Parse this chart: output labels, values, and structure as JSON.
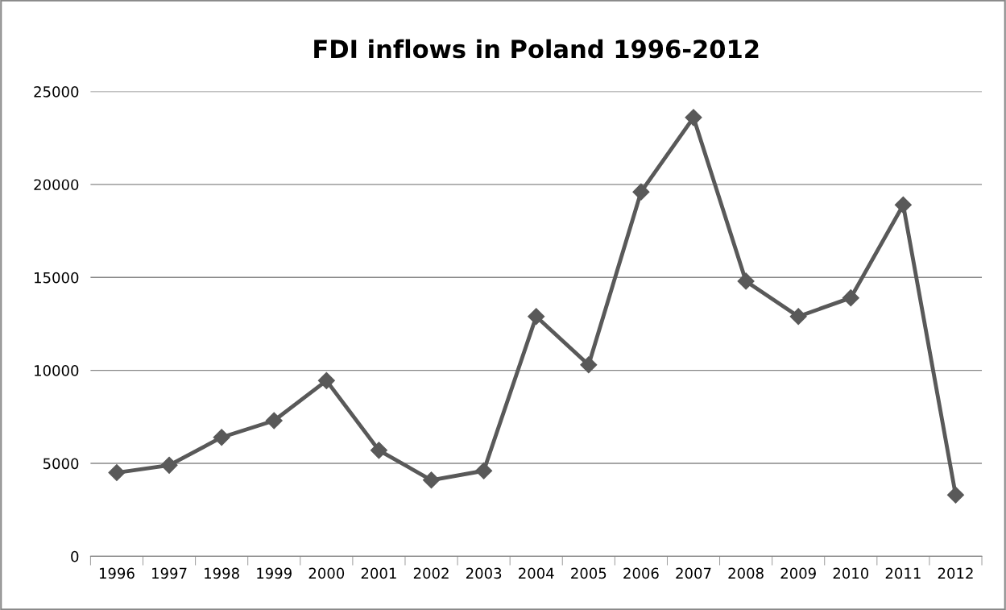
{
  "chart_data": {
    "type": "line",
    "title": "FDI inflows in Poland 1996-2012",
    "categories": [
      "1996",
      "1997",
      "1998",
      "1999",
      "2000",
      "2001",
      "2002",
      "2003",
      "2004",
      "2005",
      "2006",
      "2007",
      "2008",
      "2009",
      "2010",
      "2011",
      "2012"
    ],
    "series": [
      {
        "color": "#595959",
        "values": [
          4500,
          4900,
          6400,
          7300,
          9450,
          5700,
          4100,
          4600,
          12900,
          10300,
          19600,
          23600,
          14800,
          12900,
          13900,
          18900,
          3300
        ]
      }
    ],
    "ylim": [
      0,
      25000
    ],
    "yticks": [
      0,
      5000,
      10000,
      15000,
      20000,
      25000
    ],
    "grid": "y",
    "marker": "diamond",
    "line_style": "solid"
  }
}
